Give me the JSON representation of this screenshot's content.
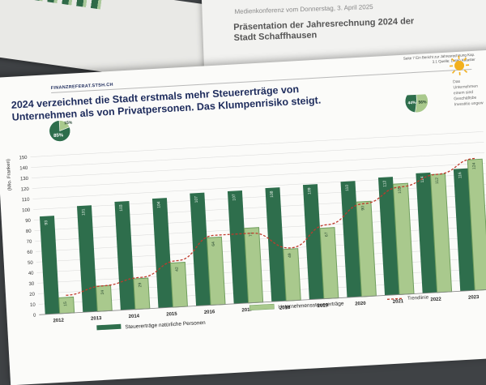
{
  "background_doc": {
    "conference_line": "Medienkonferenz vom Donnerstag, 3. April 2025",
    "title": "Präsentation der Jahresrechnung 2024 der Stadt Schaffhausen"
  },
  "slide": {
    "brand": "FINANZREFERAT.STSH.CH",
    "page_info": "Seite 7 Ein Bericht zur Jahresrechnung Kap. 3.1 Quelle: Daten Kataster",
    "headline": "2024 verzeichnet die Stadt erstmals mehr Steuererträge von Unternehmen als von Privatpersonen. Das Klumpenrisiko steigt.",
    "side_text": "Das Unternehmen einem sind Geschäftsbe Investitio ungew",
    "pie_small": {
      "label_small": "15%",
      "label_large": "85%"
    },
    "pie_right": {
      "label_left": "44%",
      "label_right": "56%"
    }
  },
  "chart_data": {
    "type": "bar",
    "ylabel": "(Mio. Franken)",
    "ylim": [
      0,
      150
    ],
    "yticks": [
      0,
      10,
      20,
      30,
      40,
      50,
      60,
      70,
      80,
      90,
      100,
      110,
      120,
      130,
      140,
      150
    ],
    "categories": [
      "2012",
      "2013",
      "2014",
      "2015",
      "2016",
      "2017",
      "2018",
      "2019",
      "2020",
      "2021",
      "2022",
      "2023"
    ],
    "series": [
      {
        "name": "Steuererträge natürliche Personen",
        "color": "#2e6e4c",
        "values": [
          93,
          101,
          103,
          104,
          107,
          107,
          108,
          109,
          110,
          112,
          114,
          116
        ]
      },
      {
        "name": "Unternehmenssteuererträge",
        "color": "#a9c98d",
        "values": [
          15,
          24,
          29,
          42,
          64,
          71,
          49,
          67,
          90,
          105,
          112,
          124
        ]
      }
    ],
    "trend": {
      "name": "Trendlinie",
      "color": "#c0392b",
      "values": [
        17,
        24,
        30,
        44,
        66,
        66,
        50,
        70,
        88,
        102,
        112,
        125
      ]
    },
    "legend": [
      "Steuererträge natürliche Personen",
      "Unternehmenssteuererträge",
      "Trendlinie"
    ]
  }
}
